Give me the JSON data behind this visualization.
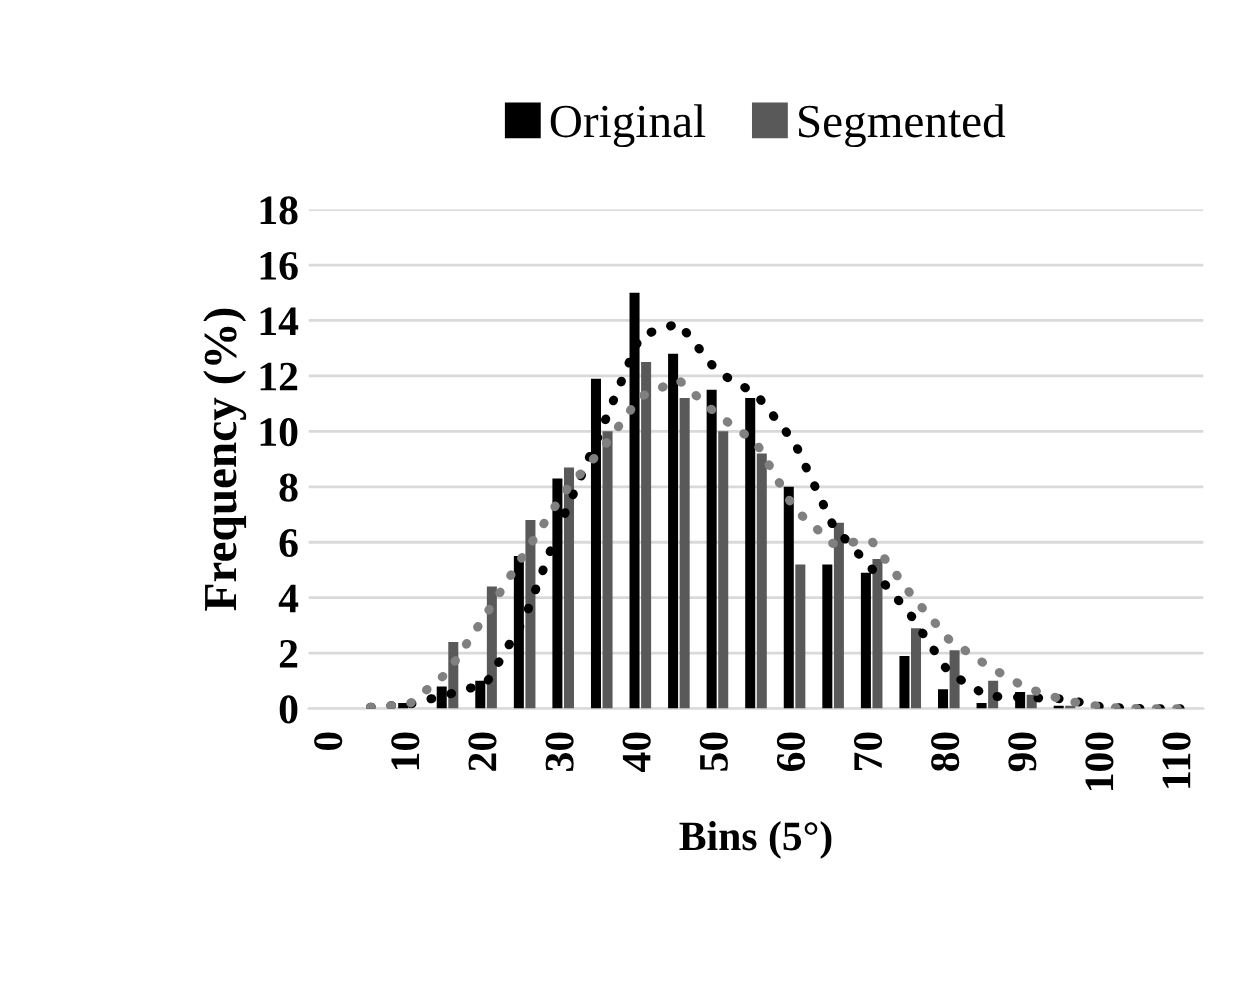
{
  "chart_data": {
    "type": "bar",
    "xlabel": "Bins (5°)",
    "ylabel": "Frequency (%)",
    "categories": [
      "0",
      null,
      "10",
      null,
      "20",
      null,
      "30",
      null,
      "40",
      null,
      "50",
      null,
      "60",
      null,
      "70",
      null,
      "80",
      null,
      "90",
      null,
      "100",
      null,
      "110"
    ],
    "series": [
      {
        "name": "Original",
        "color": "#000000",
        "values": [
          0,
          null,
          0.2,
          0.8,
          1.0,
          5.5,
          8.3,
          11.9,
          15.0,
          12.8,
          11.5,
          11.2,
          8.0,
          5.2,
          4.9,
          1.9,
          0.7,
          0.2,
          0.6,
          0.1,
          0,
          0,
          0
        ]
      },
      {
        "name": "Segmented",
        "color": "#595959",
        "values": [
          0,
          null,
          null,
          2.4,
          4.4,
          6.8,
          8.7,
          10.0,
          12.5,
          11.2,
          10.0,
          9.2,
          5.2,
          6.7,
          5.4,
          2.9,
          2.1,
          1.0,
          0.5,
          0.1,
          0,
          0,
          0
        ]
      },
      {
        "type": "line",
        "color": "#000000",
        "line_style": "dotted",
        "values": [
          null,
          0.05,
          0.15,
          0.5,
          0.9,
          3.25,
          6.9,
          10.1,
          13.45,
          13.9,
          12.15,
          11.35,
          9.6,
          6.6,
          5.05,
          3.4,
          1.3,
          0.45,
          0.4,
          0.35,
          0.05,
          0,
          0
        ]
      },
      {
        "type": "line",
        "color": "#808080",
        "line_style": "dotted",
        "values": [
          null,
          0.05,
          0.15,
          1.3,
          3.4,
          5.6,
          7.75,
          9.35,
          11.25,
          11.85,
          10.6,
          9.6,
          7.2,
          5.95,
          6.05,
          4.15,
          2.5,
          1.55,
          0.75,
          0.3,
          0.05,
          0,
          0
        ]
      }
    ],
    "ylim": [
      0,
      18
    ],
    "yticks": [
      0,
      2,
      4,
      6,
      8,
      10,
      12,
      14,
      16,
      18
    ],
    "grid": "y",
    "legend": "top"
  }
}
